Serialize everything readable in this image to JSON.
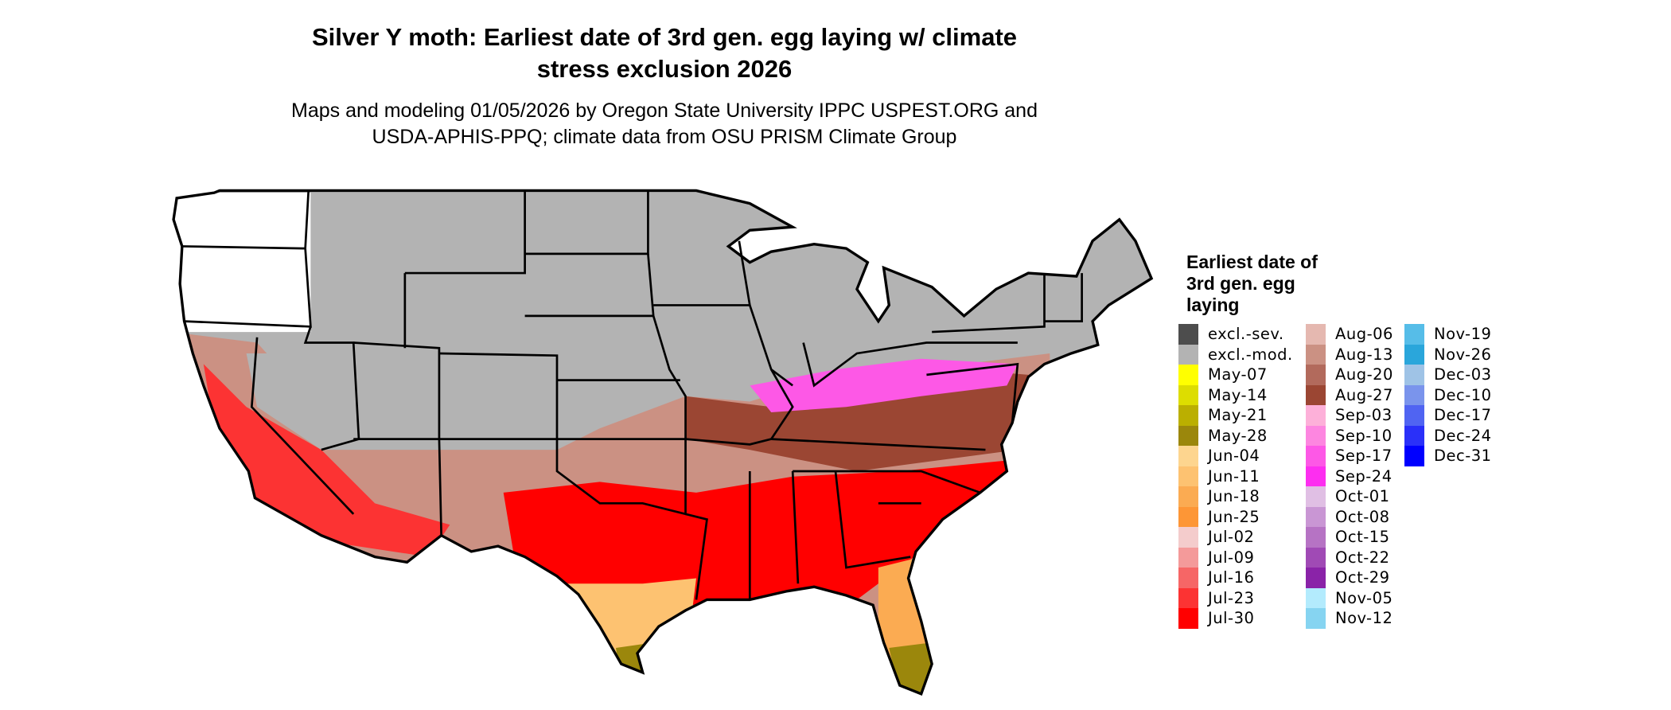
{
  "title": "Silver Y moth: Earliest date of 3rd gen. egg laying w/ climate stress exclusion 2026",
  "title_line1": "Silver Y moth: Earliest date of 3rd gen. egg laying w/ climate",
  "title_line2": "stress exclusion 2026",
  "subtitle_line1": "Maps and modeling 01/05/2026 by Oregon State University IPPC USPEST.ORG and",
  "subtitle_line2": "USDA-APHIS-PPQ; climate data from OSU PRISM Climate Group",
  "legend": {
    "title": "Earliest date of 3rd gen. egg laying",
    "columns": [
      [
        {
          "label": "excl.-sev.",
          "color": "#4d4d4d"
        },
        {
          "label": "excl.-mod.",
          "color": "#b3b3b3"
        },
        {
          "label": "May-07",
          "color": "#ffff00"
        },
        {
          "label": "May-14",
          "color": "#dddd00"
        },
        {
          "label": "May-21",
          "color": "#bbaf00"
        },
        {
          "label": "May-28",
          "color": "#9b870c"
        },
        {
          "label": "Jun-04",
          "color": "#fdd58f"
        },
        {
          "label": "Jun-11",
          "color": "#fdc271"
        },
        {
          "label": "Jun-18",
          "color": "#fbab52"
        },
        {
          "label": "Jun-25",
          "color": "#fd9636"
        },
        {
          "label": "Jul-02",
          "color": "#f4cccc"
        },
        {
          "label": "Jul-09",
          "color": "#f49a9a"
        },
        {
          "label": "Jul-16",
          "color": "#f66666"
        },
        {
          "label": "Jul-23",
          "color": "#fc3333"
        },
        {
          "label": "Jul-30",
          "color": "#ff0000"
        }
      ],
      [
        {
          "label": "Aug-06",
          "color": "#e5b8b0"
        },
        {
          "label": "Aug-13",
          "color": "#cb9183"
        },
        {
          "label": "Aug-20",
          "color": "#b26a5c"
        },
        {
          "label": "Aug-27",
          "color": "#9b4633"
        },
        {
          "label": "Sep-03",
          "color": "#fdb0d9"
        },
        {
          "label": "Sep-10",
          "color": "#fd86e0"
        },
        {
          "label": "Sep-17",
          "color": "#fd58e6"
        },
        {
          "label": "Sep-24",
          "color": "#fd2ef0"
        },
        {
          "label": "Oct-01",
          "color": "#e0bfe4"
        },
        {
          "label": "Oct-08",
          "color": "#c996d4"
        },
        {
          "label": "Oct-15",
          "color": "#b673c4"
        },
        {
          "label": "Oct-22",
          "color": "#a04ab5"
        },
        {
          "label": "Oct-29",
          "color": "#8a23a8"
        },
        {
          "label": "Nov-05",
          "color": "#b3ebfd"
        },
        {
          "label": "Nov-12",
          "color": "#86d4f1"
        }
      ],
      [
        {
          "label": "Nov-19",
          "color": "#56bde8"
        },
        {
          "label": "Nov-26",
          "color": "#2aa6db"
        },
        {
          "label": "Dec-03",
          "color": "#9fc3e6"
        },
        {
          "label": "Dec-10",
          "color": "#7a94ec"
        },
        {
          "label": "Dec-17",
          "color": "#5064f2"
        },
        {
          "label": "Dec-24",
          "color": "#2a30f9"
        },
        {
          "label": "Dec-31",
          "color": "#0000ff"
        }
      ]
    ]
  }
}
